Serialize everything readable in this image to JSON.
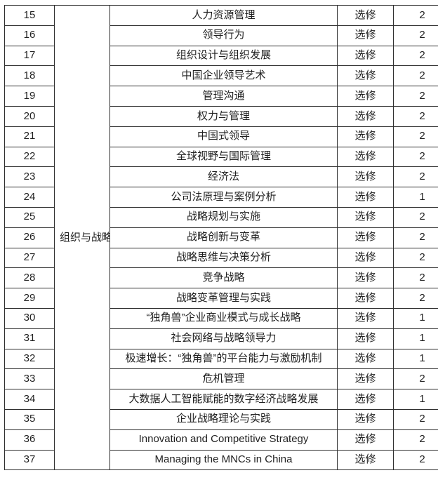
{
  "table": {
    "category_label": "组织与战略",
    "type_label_all": "选修",
    "rows": [
      {
        "num": "15",
        "course": "人力资源管理",
        "type": "选修",
        "credit": "2"
      },
      {
        "num": "16",
        "course": "领导行为",
        "type": "选修",
        "credit": "2"
      },
      {
        "num": "17",
        "course": "组织设计与组织发展",
        "type": "选修",
        "credit": "2"
      },
      {
        "num": "18",
        "course": "中国企业领导艺术",
        "type": "选修",
        "credit": "2"
      },
      {
        "num": "19",
        "course": "管理沟通",
        "type": "选修",
        "credit": "2"
      },
      {
        "num": "20",
        "course": "权力与管理",
        "type": "选修",
        "credit": "2"
      },
      {
        "num": "21",
        "course": "中国式领导",
        "type": "选修",
        "credit": "2"
      },
      {
        "num": "22",
        "course": "全球视野与国际管理",
        "type": "选修",
        "credit": "2"
      },
      {
        "num": "23",
        "course": "经济法",
        "type": "选修",
        "credit": "2"
      },
      {
        "num": "24",
        "course": "公司法原理与案例分析",
        "type": "选修",
        "credit": "1"
      },
      {
        "num": "25",
        "course": "战略规划与实施",
        "type": "选修",
        "credit": "2"
      },
      {
        "num": "26",
        "course": "战略创新与变革",
        "type": "选修",
        "credit": "2"
      },
      {
        "num": "27",
        "course": "战略思维与决策分析",
        "type": "选修",
        "credit": "2"
      },
      {
        "num": "28",
        "course": "竞争战略",
        "type": "选修",
        "credit": "2"
      },
      {
        "num": "29",
        "course": "战略变革管理与实践",
        "type": "选修",
        "credit": "2"
      },
      {
        "num": "30",
        "course": "“独角兽”企业商业模式与成长战略",
        "type": "选修",
        "credit": "1"
      },
      {
        "num": "31",
        "course": "社会网络与战略领导力",
        "type": "选修",
        "credit": "1"
      },
      {
        "num": "32",
        "course": "极速增长：“独角兽”的平台能力与激励机制",
        "type": "选修",
        "credit": "1"
      },
      {
        "num": "33",
        "course": "危机管理",
        "type": "选修",
        "credit": "2"
      },
      {
        "num": "34",
        "course": "大数据人工智能赋能的数字经济战略发展",
        "type": "选修",
        "credit": "1"
      },
      {
        "num": "35",
        "course": "企业战略理论与实践",
        "type": "选修",
        "credit": "2"
      },
      {
        "num": "36",
        "course": "Innovation and Competitive Strategy",
        "type": "选修",
        "credit": "2"
      },
      {
        "num": "37",
        "course": "Managing the MNCs in China",
        "type": "选修",
        "credit": "2"
      }
    ]
  }
}
